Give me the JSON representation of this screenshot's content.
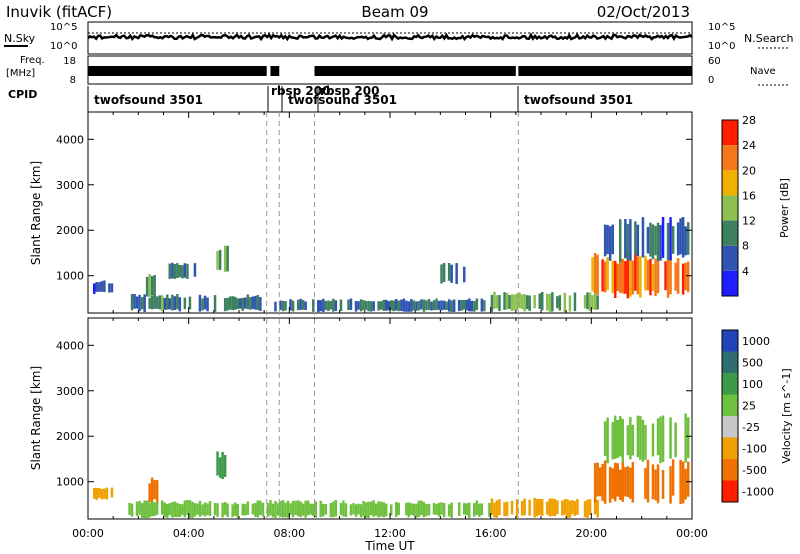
{
  "header": {
    "station": "Inuvik (fitACF)",
    "beam": "Beam 09",
    "date": "02/Oct/2013"
  },
  "summary_panels": {
    "nsky_label": "N.Sky",
    "nsky_tick_top": "10^5",
    "nsky_tick_bottom": "10^0",
    "nsearch_label": "N.Search",
    "freq_label": "Freq.",
    "freq_unit": "[MHz]",
    "freq_tick_top": "18",
    "freq_tick_bottom": "8",
    "nave_label": "Nave",
    "nave_tick_top": "60",
    "nave_tick_bottom": "0",
    "cpid_label": "CPID",
    "cpid_segments": [
      "twofsound 3501",
      "rbsp 200",
      "rbsp 200",
      "twofsound 3501",
      "twofsound 3501"
    ]
  },
  "chart_data": [
    {
      "type": "heatmap",
      "title": "Power",
      "xlabel": "",
      "ylabel": "Slant Range [km]",
      "yticks": [
        "1000",
        "2000",
        "3000",
        "4000"
      ],
      "ylim": [
        180,
        4600
      ],
      "colorbar_label": "Power [dB]",
      "colorbar_ticks": [
        "4",
        "8",
        "12",
        "16",
        "20",
        "24",
        "28"
      ],
      "colorbar_range": [
        0,
        32
      ],
      "colors": [
        "#1e1eff",
        "#2f55b0",
        "#3c8060",
        "#8cc050",
        "#f0b000",
        "#f57818",
        "#ff1e00"
      ],
      "regions": [
        {
          "t0": 0.2,
          "t1": 1.0,
          "r0": 600,
          "r1": 900,
          "v": 6
        },
        {
          "t0": 2.3,
          "t1": 2.8,
          "r0": 500,
          "r1": 1100,
          "v": 14
        },
        {
          "t0": 3.2,
          "t1": 4.4,
          "r0": 900,
          "r1": 1300,
          "v": 10
        },
        {
          "t0": 5.1,
          "t1": 5.6,
          "r0": 1000,
          "r1": 1700,
          "v": 14
        },
        {
          "t0": 1.6,
          "t1": 7.0,
          "r0": 200,
          "r1": 600,
          "v": 10
        },
        {
          "t0": 7.2,
          "t1": 16.0,
          "r0": 200,
          "r1": 500,
          "v": 9
        },
        {
          "t0": 14.0,
          "t1": 15.0,
          "r0": 800,
          "r1": 1300,
          "v": 8
        },
        {
          "t0": 16.0,
          "t1": 20.3,
          "r0": 200,
          "r1": 650,
          "v": 14
        },
        {
          "t0": 20.0,
          "t1": 23.9,
          "r0": 500,
          "r1": 1500,
          "v": 26
        },
        {
          "t0": 20.5,
          "t1": 23.9,
          "r0": 1300,
          "r1": 2300,
          "v": 8
        }
      ]
    },
    {
      "type": "heatmap",
      "title": "Velocity",
      "xlabel": "Time UT",
      "ylabel": "Slant Range [km]",
      "xticks": [
        "00:00",
        "04:00",
        "08:00",
        "12:00",
        "16:00",
        "20:00",
        "00:00"
      ],
      "yticks": [
        "1000",
        "2000",
        "3000",
        "4000"
      ],
      "ylim": [
        180,
        4600
      ],
      "colorbar_label": "Velocity [m s^-1]",
      "colorbar_ticks": [
        "1000",
        "500",
        "100",
        "25",
        "-25",
        "-100",
        "-500",
        "-1000"
      ],
      "colors": [
        "#2244bb",
        "#2f6e6e",
        "#3c9a4a",
        "#70c040",
        "#c8c8c8",
        "#f0a000",
        "#f07000",
        "#ff1e00"
      ],
      "regions": [
        {
          "t0": 0.2,
          "t1": 1.0,
          "r0": 600,
          "r1": 900,
          "v": -100
        },
        {
          "t0": 2.3,
          "t1": 2.8,
          "r0": 500,
          "r1": 1100,
          "v": -500
        },
        {
          "t0": 5.1,
          "t1": 5.6,
          "r0": 1000,
          "r1": 1700,
          "v": 100
        },
        {
          "t0": 1.6,
          "t1": 16.0,
          "r0": 200,
          "r1": 600,
          "v": 25
        },
        {
          "t0": 16.0,
          "t1": 20.3,
          "r0": 200,
          "r1": 650,
          "v": -100
        },
        {
          "t0": 20.0,
          "t1": 23.9,
          "r0": 500,
          "r1": 1500,
          "v": -500
        },
        {
          "t0": 20.5,
          "t1": 23.9,
          "r0": 1400,
          "r1": 2500,
          "v": 0
        }
      ]
    }
  ]
}
